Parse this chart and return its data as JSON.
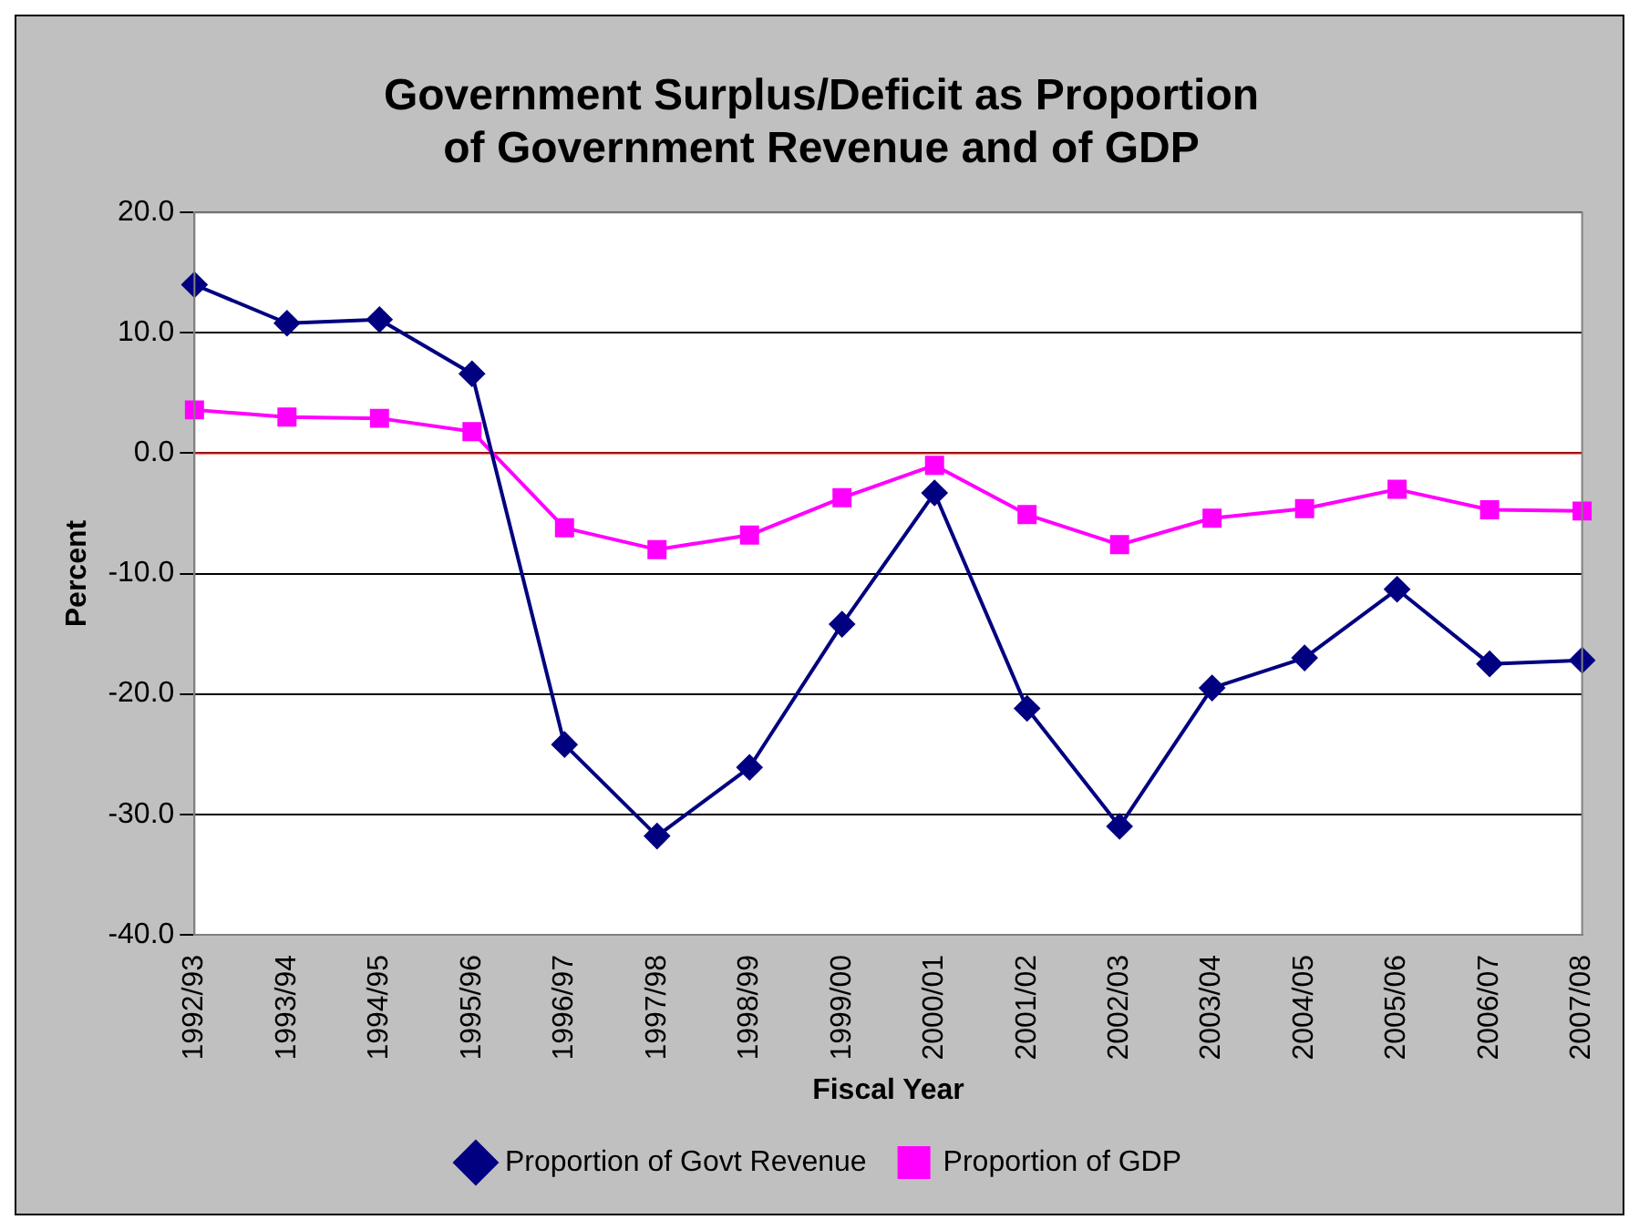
{
  "chart_data": {
    "type": "line",
    "title": [
      "Government Surplus/Deficit as Proportion",
      "of Government Revenue and of GDP"
    ],
    "xlabel": "Fiscal Year",
    "ylabel": "Percent",
    "categories": [
      "1992/93",
      "1993/94",
      "1994/95",
      "1995/96",
      "1996/97",
      "1997/98",
      "1998/99",
      "1999/00",
      "2000/01",
      "2001/02",
      "2002/03",
      "2003/04",
      "2004/05",
      "2005/06",
      "2006/07",
      "2007/08"
    ],
    "series": [
      {
        "name": "Proportion of Govt Revenue",
        "color": "#000080",
        "marker": "diamond",
        "values": [
          14.0,
          10.8,
          11.1,
          6.6,
          -24.2,
          -31.8,
          -26.1,
          -14.2,
          -3.3,
          -21.2,
          -31.0,
          -19.5,
          -17.0,
          -11.3,
          -17.5,
          -17.2
        ]
      },
      {
        "name": "Proportion of GDP",
        "color": "#ff00ff",
        "marker": "square",
        "values": [
          3.6,
          3.0,
          2.9,
          1.8,
          -6.2,
          -8.0,
          -6.8,
          -3.7,
          -1.0,
          -5.1,
          -7.6,
          -5.4,
          -4.6,
          -3.0,
          -4.7,
          -4.8
        ]
      }
    ],
    "ylim": [
      -40,
      20
    ],
    "yticks": [
      {
        "value": -40,
        "label": "-40.0"
      },
      {
        "value": -30,
        "label": "-30.0"
      },
      {
        "value": -20,
        "label": "-20.0"
      },
      {
        "value": -10,
        "label": "-10.0"
      },
      {
        "value": 0,
        "label": "0.0"
      },
      {
        "value": 10,
        "label": "10.0"
      },
      {
        "value": 20,
        "label": "20.0"
      }
    ],
    "grid": "y",
    "legend": "bottom",
    "line_style": "solid",
    "ref_lines": [
      {
        "axis": "y",
        "value": 0,
        "color": "#ff0000"
      }
    ]
  }
}
